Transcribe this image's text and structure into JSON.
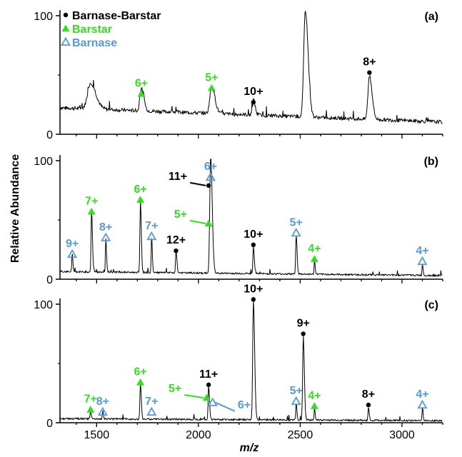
{
  "colors": {
    "black": "#000000",
    "green": "#33dd22",
    "blue": "#5599dd"
  },
  "chart_data": {
    "type": "line",
    "xlabel": "m/z",
    "ylabel": "Relative Abundance",
    "xlim": [
      1320,
      3200
    ],
    "xticks": [
      "1500",
      "2000",
      "2500",
      "3000"
    ],
    "xtick_values": [
      1500,
      2000,
      2500,
      3000
    ],
    "legend": [
      {
        "label": "Barnase-Barstar",
        "marker": "dot",
        "color": "black"
      },
      {
        "label": "Barstar",
        "marker": "filled-triangle",
        "color": "green"
      },
      {
        "label": "Barnase",
        "marker": "open-triangle",
        "color": "blue"
      }
    ],
    "panels": [
      {
        "label": "(a)",
        "ylim": [
          0,
          100
        ],
        "yticks": [
          "0",
          "100"
        ],
        "baseline": 22,
        "peaks": [
          {
            "x": 1470,
            "y": 35,
            "w": 30
          },
          {
            "x": 1720,
            "y": 32,
            "w": 14
          },
          {
            "x": 2065,
            "y": 37,
            "w": 18
          },
          {
            "x": 2270,
            "y": 26,
            "w": 10
          },
          {
            "x": 2525,
            "y": 103,
            "w": 16
          },
          {
            "x": 2840,
            "y": 50,
            "w": 15
          }
        ],
        "annotations": [
          {
            "text": "6+",
            "x": 1720,
            "y": 34,
            "marker": "filled-triangle",
            "color": "green"
          },
          {
            "text": "5+",
            "x": 2065,
            "y": 39,
            "marker": "filled-triangle",
            "color": "green"
          },
          {
            "text": "10+",
            "x": 2270,
            "y": 27,
            "marker": "dot",
            "color": "black"
          },
          {
            "text": "8+",
            "x": 2840,
            "y": 52,
            "marker": "dot",
            "color": "black"
          }
        ]
      },
      {
        "label": "(b)",
        "ylim": [
          0,
          100
        ],
        "yticks": [
          "0",
          "100"
        ],
        "baseline": 6,
        "peaks": [
          {
            "x": 1380,
            "y": 19,
            "w": 4
          },
          {
            "x": 1475,
            "y": 55,
            "w": 5
          },
          {
            "x": 1545,
            "y": 33,
            "w": 4
          },
          {
            "x": 1715,
            "y": 65,
            "w": 5
          },
          {
            "x": 1770,
            "y": 34,
            "w": 4
          },
          {
            "x": 1890,
            "y": 22,
            "w": 5
          },
          {
            "x": 2060,
            "y": 102,
            "w": 9
          },
          {
            "x": 2270,
            "y": 27,
            "w": 5
          },
          {
            "x": 2480,
            "y": 37,
            "w": 5
          },
          {
            "x": 2570,
            "y": 15,
            "w": 4
          },
          {
            "x": 3100,
            "y": 13,
            "w": 4
          }
        ],
        "annotations": [
          {
            "text": "9+",
            "x": 1380,
            "y": 21,
            "marker": "open-triangle",
            "color": "blue"
          },
          {
            "text": "7+",
            "x": 1475,
            "y": 57,
            "marker": "filled-triangle",
            "color": "green"
          },
          {
            "text": "8+",
            "x": 1545,
            "y": 35,
            "marker": "open-triangle",
            "color": "blue"
          },
          {
            "text": "6+",
            "x": 1715,
            "y": 67,
            "marker": "filled-triangle",
            "color": "green"
          },
          {
            "text": "7+",
            "x": 1770,
            "y": 36,
            "marker": "open-triangle",
            "color": "blue"
          },
          {
            "text": "12+",
            "x": 1890,
            "y": 24,
            "marker": "dot",
            "color": "black"
          },
          {
            "text": "11+",
            "x": 2050,
            "y": 79,
            "marker": "dot",
            "color": "black",
            "leader": true,
            "label_dx": -30,
            "label_dy": -8
          },
          {
            "text": "5+",
            "x": 2050,
            "y": 47,
            "marker": "filled-triangle",
            "color": "green",
            "leader": true,
            "label_dx": -30,
            "label_dy": -8
          },
          {
            "text": "6+",
            "x": 2060,
            "y": 86,
            "marker": "open-triangle",
            "color": "blue"
          },
          {
            "text": "10+",
            "x": 2270,
            "y": 29,
            "marker": "dot",
            "color": "black"
          },
          {
            "text": "5+",
            "x": 2480,
            "y": 39,
            "marker": "open-triangle",
            "color": "blue"
          },
          {
            "text": "4+",
            "x": 2570,
            "y": 17,
            "marker": "filled-triangle",
            "color": "green"
          },
          {
            "text": "4+",
            "x": 3100,
            "y": 15,
            "marker": "open-triangle",
            "color": "blue"
          }
        ]
      },
      {
        "label": "(c)",
        "ylim": [
          0,
          100
        ],
        "yticks": [
          "0",
          "100"
        ],
        "baseline": 3,
        "peaks": [
          {
            "x": 1470,
            "y": 9,
            "w": 4
          },
          {
            "x": 1530,
            "y": 7,
            "w": 4
          },
          {
            "x": 1715,
            "y": 32,
            "w": 5
          },
          {
            "x": 2050,
            "y": 30,
            "w": 5
          },
          {
            "x": 2270,
            "y": 103,
            "w": 7
          },
          {
            "x": 2515,
            "y": 73,
            "w": 6
          },
          {
            "x": 2480,
            "y": 16,
            "w": 4
          },
          {
            "x": 2570,
            "y": 12,
            "w": 4
          },
          {
            "x": 2835,
            "y": 13,
            "w": 4
          },
          {
            "x": 3100,
            "y": 13,
            "w": 4
          }
        ],
        "annotations": [
          {
            "text": "7+",
            "x": 1470,
            "y": 11,
            "marker": "filled-triangle",
            "color": "green"
          },
          {
            "text": "8+",
            "x": 1530,
            "y": 9,
            "marker": "open-triangle",
            "color": "blue"
          },
          {
            "text": "7+",
            "x": 1770,
            "y": 9,
            "marker": "open-triangle",
            "color": "blue"
          },
          {
            "text": "6+",
            "x": 1715,
            "y": 34,
            "marker": "filled-triangle",
            "color": "green"
          },
          {
            "text": "5+",
            "x": 2040,
            "y": 21,
            "marker": "filled-triangle",
            "color": "green",
            "leader": true,
            "label_dx": -35,
            "label_dy": -8
          },
          {
            "text": "11+",
            "x": 2050,
            "y": 32,
            "marker": "dot",
            "color": "black"
          },
          {
            "text": "6+",
            "x": 2070,
            "y": 17,
            "marker": "open-triangle",
            "color": "blue",
            "leader": true,
            "label_dx": 35,
            "label_dy": 8,
            "label_side": "right"
          },
          {
            "text": "10+",
            "x": 2270,
            "y": 104,
            "marker": "dot",
            "color": "black"
          },
          {
            "text": "9+",
            "x": 2515,
            "y": 75,
            "marker": "dot",
            "color": "black"
          },
          {
            "text": "5+",
            "x": 2480,
            "y": 18,
            "marker": "open-triangle",
            "color": "blue"
          },
          {
            "text": "4+",
            "x": 2570,
            "y": 14,
            "marker": "filled-triangle",
            "color": "green"
          },
          {
            "text": "8+",
            "x": 2835,
            "y": 15,
            "marker": "dot",
            "color": "black"
          },
          {
            "text": "4+",
            "x": 3100,
            "y": 15,
            "marker": "open-triangle",
            "color": "blue"
          }
        ]
      }
    ]
  }
}
